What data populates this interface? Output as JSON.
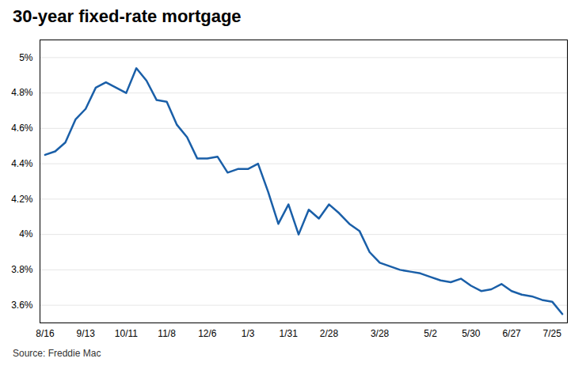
{
  "chart_data": {
    "type": "line",
    "title": "30-year fixed-rate mortgage",
    "source": "Source: Freddie Mac",
    "categories": [
      "8/16",
      null,
      null,
      null,
      "9/13",
      null,
      null,
      null,
      "10/11",
      null,
      null,
      null,
      "11/8",
      null,
      null,
      null,
      "12/6",
      null,
      null,
      null,
      "1/3",
      null,
      null,
      null,
      "1/31",
      null,
      null,
      null,
      "2/28",
      null,
      null,
      null,
      null,
      "3/28",
      null,
      null,
      null,
      null,
      "5/2",
      null,
      null,
      null,
      "5/30",
      null,
      null,
      null,
      "6/27",
      null,
      null,
      null,
      "7/25",
      null
    ],
    "values": [
      4.45,
      4.47,
      4.52,
      4.65,
      4.71,
      4.83,
      4.86,
      4.83,
      4.8,
      4.94,
      4.87,
      4.76,
      4.75,
      4.62,
      4.55,
      4.43,
      4.43,
      4.44,
      4.35,
      4.37,
      4.37,
      4.4,
      4.24,
      4.06,
      4.17,
      4.0,
      4.14,
      4.09,
      4.17,
      4.12,
      4.06,
      4.02,
      3.9,
      3.84,
      3.82,
      3.8,
      3.79,
      3.78,
      3.76,
      3.74,
      3.73,
      3.75,
      3.71,
      3.68,
      3.69,
      3.72,
      3.68,
      3.66,
      3.65,
      3.63,
      3.62,
      3.55
    ],
    "color": "#1a5fa8",
    "ylim": [
      3.5,
      5.1
    ],
    "yticks": [
      {
        "value": 3.6,
        "label": "3.6%"
      },
      {
        "value": 3.8,
        "label": "3.8%"
      },
      {
        "value": 4.0,
        "label": "4%"
      },
      {
        "value": 4.2,
        "label": "4.2%"
      },
      {
        "value": 4.4,
        "label": "4.4%"
      },
      {
        "value": 4.6,
        "label": "4.6%"
      },
      {
        "value": 4.8,
        "label": "4.8%"
      },
      {
        "value": 5.0,
        "label": "5%"
      }
    ],
    "grid": true
  }
}
